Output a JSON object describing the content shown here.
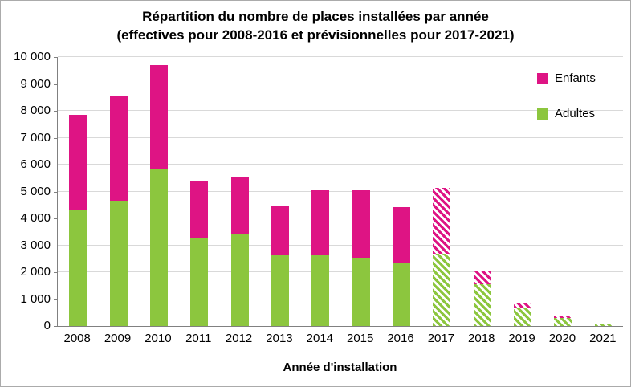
{
  "title": {
    "line1": "Répartition du nombre de places installées par année",
    "line2": "(effectives pour 2008-2016 et prévisionnelles pour 2017-2021)"
  },
  "chart_data": {
    "type": "bar",
    "stacked": true,
    "title": "Répartition du nombre de places installées par année (effectives pour 2008-2016 et prévisionnelles pour 2017-2021)",
    "xlabel": "Année d'installation",
    "ylabel": "",
    "ylim": [
      0,
      10000
    ],
    "ytick_step": 1000,
    "ytick_labels": [
      "0",
      "1 000",
      "2 000",
      "3 000",
      "4 000",
      "5 000",
      "6 000",
      "7 000",
      "8 000",
      "9 000",
      "10 000"
    ],
    "categories": [
      "2008",
      "2009",
      "2010",
      "2011",
      "2012",
      "2013",
      "2014",
      "2015",
      "2016",
      "2017",
      "2018",
      "2019",
      "2020",
      "2021"
    ],
    "series": [
      {
        "name": "Adultes",
        "color": "#8cc63e",
        "values": [
          4300,
          4650,
          5850,
          3250,
          3400,
          2650,
          2650,
          2550,
          2350,
          2700,
          1550,
          700,
          300,
          60
        ]
      },
      {
        "name": "Enfants",
        "color": "#de1484",
        "values": [
          3550,
          3900,
          3850,
          2150,
          2150,
          1800,
          2400,
          2500,
          2050,
          2450,
          500,
          150,
          60,
          30
        ]
      }
    ],
    "forecast_categories": [
      "2017",
      "2018",
      "2019",
      "2020",
      "2021"
    ],
    "forecast_style": "diagonal-hatch",
    "grid": "horizontal",
    "legend_position": "top-right",
    "legend": [
      {
        "label": "Enfants",
        "color": "#de1484"
      },
      {
        "label": "Adultes",
        "color": "#8cc63e"
      }
    ]
  }
}
